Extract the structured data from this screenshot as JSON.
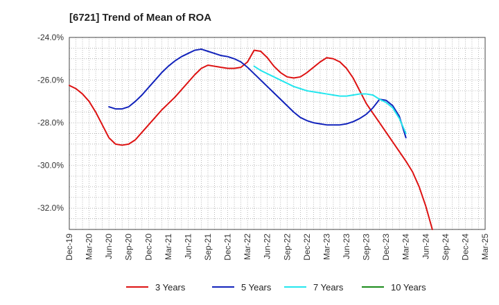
{
  "chart_data": {
    "type": "line",
    "title": "[6721]  Trend of Mean of ROA",
    "xlabel": "",
    "ylabel": "",
    "x": [
      "Dec-19",
      "Mar-20",
      "Jun-20",
      "Sep-20",
      "Dec-20",
      "Mar-21",
      "Jun-21",
      "Sep-21",
      "Dec-21",
      "Mar-22",
      "Jun-22",
      "Sep-22",
      "Dec-22",
      "Mar-23",
      "Jun-23",
      "Sep-23",
      "Dec-23",
      "Mar-24",
      "Jun-24",
      "Sep-24",
      "Dec-24",
      "Mar-25"
    ],
    "ylim": [
      -33.0,
      -24.0
    ],
    "yticks": [
      -24.0,
      -26.0,
      -28.0,
      -30.0,
      -32.0
    ],
    "ytick_labels": [
      "-24.0%",
      "-26.0%",
      "-28.0%",
      "-30.0%",
      "-32.0%"
    ],
    "grid": true,
    "legend": "bottom",
    "series": [
      {
        "name": "3 Years",
        "color": "#dd1111",
        "points": [
          [
            0,
            -26.25
          ],
          [
            0.333,
            -26.4
          ],
          [
            0.667,
            -26.65
          ],
          [
            1,
            -27.0
          ],
          [
            1.333,
            -27.5
          ],
          [
            1.667,
            -28.1
          ],
          [
            2,
            -28.7
          ],
          [
            2.333,
            -29.0
          ],
          [
            2.667,
            -29.05
          ],
          [
            3,
            -29.0
          ],
          [
            3.333,
            -28.8
          ],
          [
            3.667,
            -28.45
          ],
          [
            4,
            -28.1
          ],
          [
            4.333,
            -27.75
          ],
          [
            4.667,
            -27.4
          ],
          [
            5,
            -27.1
          ],
          [
            5.333,
            -26.8
          ],
          [
            5.667,
            -26.45
          ],
          [
            6,
            -26.1
          ],
          [
            6.333,
            -25.75
          ],
          [
            6.667,
            -25.45
          ],
          [
            7,
            -25.3
          ],
          [
            7.333,
            -25.35
          ],
          [
            7.667,
            -25.4
          ],
          [
            8,
            -25.45
          ],
          [
            8.333,
            -25.45
          ],
          [
            8.667,
            -25.4
          ],
          [
            9,
            -25.15
          ],
          [
            9.333,
            -24.6
          ],
          [
            9.667,
            -24.65
          ],
          [
            10,
            -24.95
          ],
          [
            10.333,
            -25.35
          ],
          [
            10.667,
            -25.65
          ],
          [
            11,
            -25.85
          ],
          [
            11.333,
            -25.9
          ],
          [
            11.667,
            -25.85
          ],
          [
            12,
            -25.65
          ],
          [
            12.333,
            -25.4
          ],
          [
            12.667,
            -25.15
          ],
          [
            13,
            -24.95
          ],
          [
            13.333,
            -25.0
          ],
          [
            13.667,
            -25.15
          ],
          [
            14,
            -25.45
          ],
          [
            14.333,
            -25.9
          ],
          [
            14.667,
            -26.5
          ],
          [
            15,
            -27.1
          ],
          [
            15.333,
            -27.55
          ],
          [
            15.667,
            -28.0
          ],
          [
            16,
            -28.45
          ],
          [
            16.333,
            -28.9
          ],
          [
            16.667,
            -29.35
          ],
          [
            17,
            -29.8
          ],
          [
            17.333,
            -30.3
          ],
          [
            17.667,
            -31.0
          ],
          [
            18,
            -31.9
          ],
          [
            18.333,
            -33.0
          ]
        ]
      },
      {
        "name": "5 Years",
        "color": "#1122bb",
        "points": [
          [
            2,
            -27.25
          ],
          [
            2.333,
            -27.35
          ],
          [
            2.667,
            -27.35
          ],
          [
            3,
            -27.25
          ],
          [
            3.333,
            -27.0
          ],
          [
            3.667,
            -26.7
          ],
          [
            4,
            -26.35
          ],
          [
            4.333,
            -26.0
          ],
          [
            4.667,
            -25.65
          ],
          [
            5,
            -25.35
          ],
          [
            5.333,
            -25.1
          ],
          [
            5.667,
            -24.9
          ],
          [
            6,
            -24.75
          ],
          [
            6.333,
            -24.6
          ],
          [
            6.667,
            -24.55
          ],
          [
            7,
            -24.65
          ],
          [
            7.333,
            -24.75
          ],
          [
            7.667,
            -24.85
          ],
          [
            8,
            -24.9
          ],
          [
            8.333,
            -25.0
          ],
          [
            8.667,
            -25.15
          ],
          [
            9,
            -25.4
          ],
          [
            9.333,
            -25.7
          ],
          [
            9.667,
            -26.0
          ],
          [
            10,
            -26.3
          ],
          [
            10.333,
            -26.6
          ],
          [
            10.667,
            -26.9
          ],
          [
            11,
            -27.2
          ],
          [
            11.333,
            -27.5
          ],
          [
            11.667,
            -27.75
          ],
          [
            12,
            -27.9
          ],
          [
            12.333,
            -28.0
          ],
          [
            12.667,
            -28.05
          ],
          [
            13,
            -28.1
          ],
          [
            13.333,
            -28.1
          ],
          [
            13.667,
            -28.1
          ],
          [
            14,
            -28.05
          ],
          [
            14.333,
            -27.95
          ],
          [
            14.667,
            -27.8
          ],
          [
            15,
            -27.6
          ],
          [
            15.333,
            -27.3
          ],
          [
            15.667,
            -26.9
          ],
          [
            16,
            -26.95
          ],
          [
            16.333,
            -27.2
          ],
          [
            16.667,
            -27.7
          ],
          [
            17,
            -28.7
          ]
        ]
      },
      {
        "name": "7 Years",
        "color": "#22e6ee",
        "points": [
          [
            9.333,
            -25.35
          ],
          [
            9.667,
            -25.55
          ],
          [
            10,
            -25.7
          ],
          [
            10.333,
            -25.85
          ],
          [
            10.667,
            -26.0
          ],
          [
            11,
            -26.15
          ],
          [
            11.333,
            -26.3
          ],
          [
            11.667,
            -26.4
          ],
          [
            12,
            -26.5
          ],
          [
            12.333,
            -26.55
          ],
          [
            12.667,
            -26.6
          ],
          [
            13,
            -26.65
          ],
          [
            13.333,
            -26.7
          ],
          [
            13.667,
            -26.75
          ],
          [
            14,
            -26.75
          ],
          [
            14.333,
            -26.7
          ],
          [
            14.667,
            -26.65
          ],
          [
            15,
            -26.65
          ],
          [
            15.333,
            -26.7
          ],
          [
            15.667,
            -26.9
          ],
          [
            16,
            -27.05
          ],
          [
            16.333,
            -27.3
          ],
          [
            16.667,
            -27.8
          ],
          [
            17,
            -28.5
          ]
        ]
      },
      {
        "name": "10 Years",
        "color": "#1a8a1a",
        "points": []
      }
    ]
  }
}
